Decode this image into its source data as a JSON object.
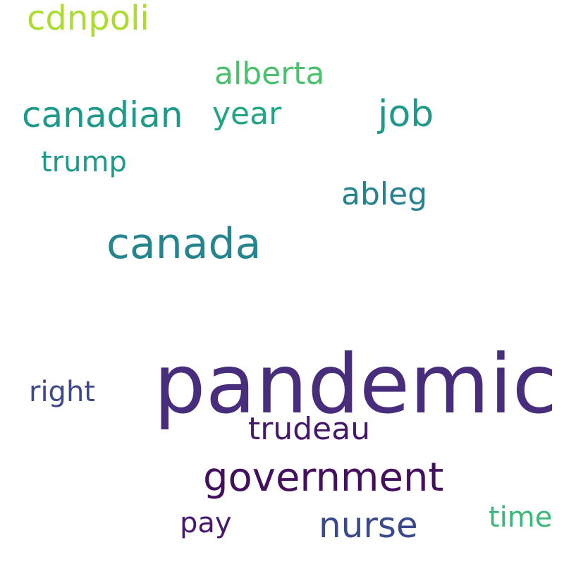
{
  "words": [
    {
      "text": "pandemic",
      "color": "#472d7b"
    },
    {
      "text": "canada",
      "color": "#25858e"
    },
    {
      "text": "government",
      "color": "#440f5c"
    },
    {
      "text": "nurse",
      "color": "#3b4a8c"
    },
    {
      "text": "canadian",
      "color": "#1f9a8a"
    },
    {
      "text": "job",
      "color": "#1f9a8a"
    },
    {
      "text": "trudeau",
      "color": "#45196a"
    },
    {
      "text": "cdnpoli",
      "color": "#addc30"
    },
    {
      "text": "alberta",
      "color": "#4ac16d"
    },
    {
      "text": "year",
      "color": "#21a685"
    },
    {
      "text": "ableg",
      "color": "#26828e"
    },
    {
      "text": "trump",
      "color": "#1f9a8a"
    },
    {
      "text": "right",
      "color": "#3e4989"
    },
    {
      "text": "pay",
      "color": "#48186a"
    },
    {
      "text": "time",
      "color": "#38b977"
    }
  ]
}
